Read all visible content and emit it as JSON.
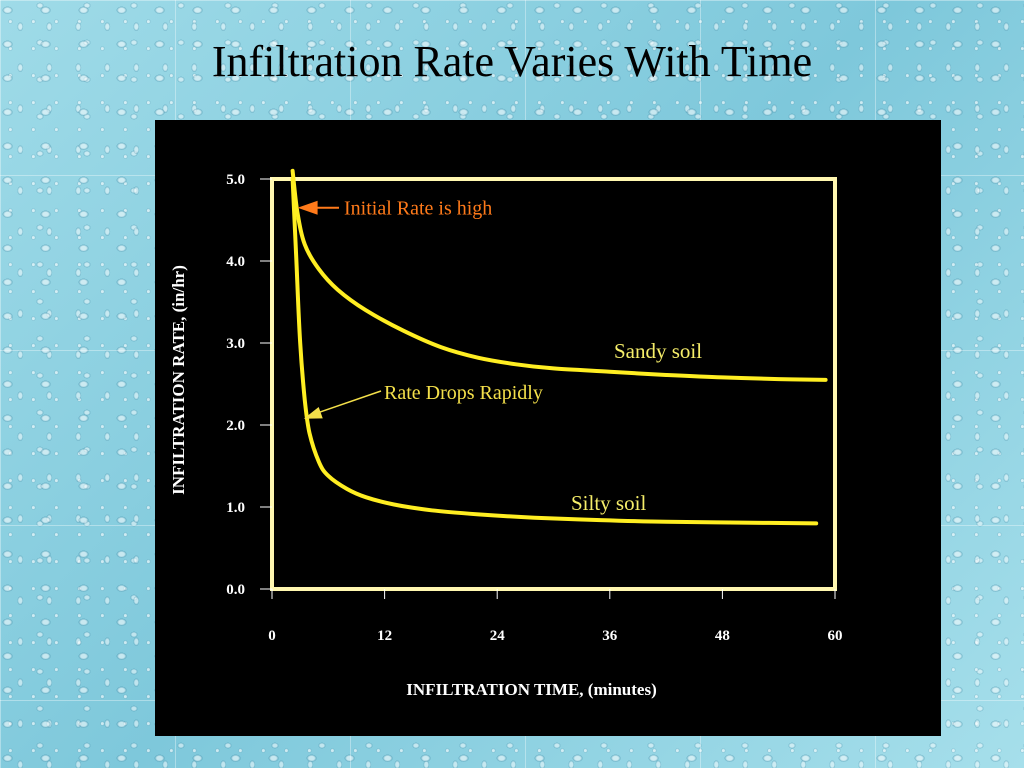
{
  "slide": {
    "title": "Infiltration Rate Varies With Time"
  },
  "colors": {
    "panel_background": "#000000",
    "frame": "#fff7b0",
    "curve": "#ffee22",
    "annotation_orange": "#ff7a1a",
    "annotation_yellow": "#f4e04a"
  },
  "chart_data": {
    "type": "line",
    "title": "",
    "xlabel": "INFILTRATION  TIME, (minutes)",
    "ylabel": "INFILTRATION RATE, (in/hr)",
    "xlim": [
      0,
      60
    ],
    "ylim": [
      0,
      5
    ],
    "x_ticks": [
      0,
      12,
      24,
      36,
      48,
      60
    ],
    "x_tick_labels": [
      "0",
      "12",
      "24",
      "36",
      "48",
      "60"
    ],
    "y_ticks": [
      0,
      1,
      2,
      3,
      4,
      5
    ],
    "y_tick_labels": [
      "0.0",
      "1.0",
      "2.0",
      "3.0",
      "4.0",
      "5.0"
    ],
    "grid": false,
    "series": [
      {
        "name": "Sandy soil",
        "x": [
          2.2,
          2.7,
          3.5,
          5,
          7,
          10,
          14,
          18,
          22,
          26,
          30,
          36,
          42,
          48,
          54,
          59
        ],
        "y": [
          5.1,
          4.6,
          4.2,
          3.9,
          3.65,
          3.4,
          3.15,
          2.95,
          2.82,
          2.74,
          2.69,
          2.65,
          2.61,
          2.58,
          2.56,
          2.55
        ]
      },
      {
        "name": "Silty soil",
        "x": [
          2.2,
          2.6,
          3.0,
          3.5,
          4.0,
          5,
          6,
          8,
          10,
          13,
          17,
          22,
          28,
          35,
          42,
          50,
          58
        ],
        "y": [
          5.0,
          4.0,
          3.0,
          2.3,
          1.9,
          1.55,
          1.38,
          1.22,
          1.12,
          1.03,
          0.96,
          0.91,
          0.87,
          0.84,
          0.82,
          0.81,
          0.8
        ]
      }
    ],
    "annotations": [
      {
        "text": "Initial Rate is high",
        "x": 2.3,
        "y": 4.65,
        "color": "orange"
      },
      {
        "text": "Rate Drops Rapidly",
        "x": 3.6,
        "y": 2.1,
        "color": "yellow"
      }
    ]
  }
}
